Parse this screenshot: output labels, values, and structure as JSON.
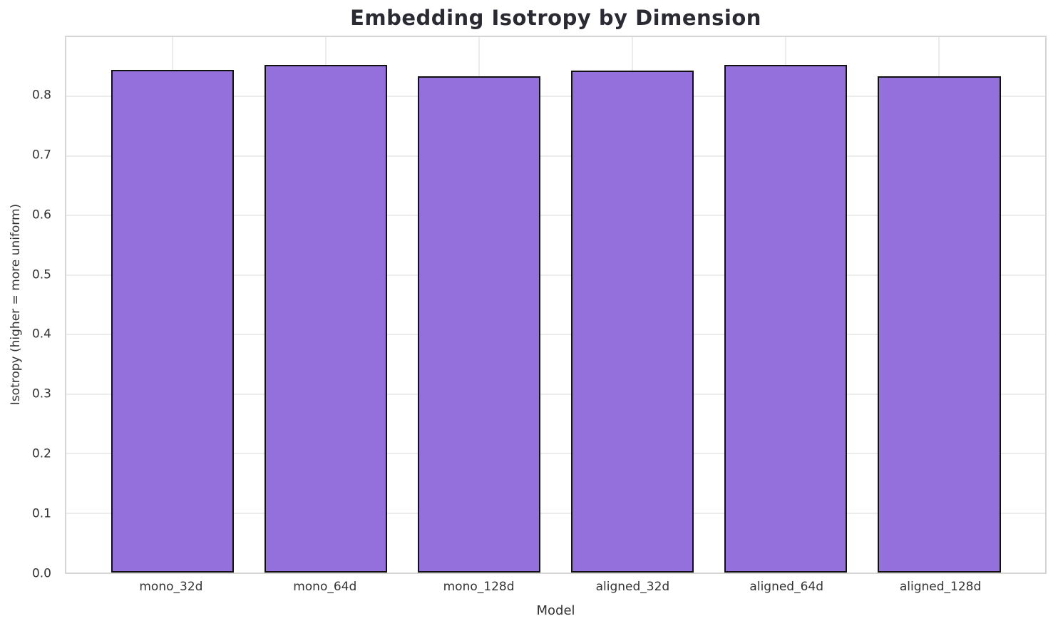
{
  "chart_data": {
    "type": "bar",
    "title": "Embedding Isotropy by Dimension",
    "xlabel": "Model",
    "ylabel": "Isotropy (higher = more uniform)",
    "categories": [
      "mono_32d",
      "mono_64d",
      "mono_128d",
      "aligned_32d",
      "aligned_64d",
      "aligned_128d"
    ],
    "values": [
      0.845,
      0.853,
      0.834,
      0.844,
      0.853,
      0.834
    ],
    "ylim": [
      0,
      0.9
    ],
    "ytick_labels": [
      "0.0",
      "0.1",
      "0.2",
      "0.3",
      "0.4",
      "0.5",
      "0.6",
      "0.7",
      "0.8"
    ],
    "grid": true,
    "legend_position": "none",
    "colors": {
      "bar_fill": "#9370DB",
      "bar_edge": "#111111",
      "grid_line": "#ececec",
      "spine": "#d5d5d5",
      "title_text": "#2a2a33",
      "tick_text": "#333333",
      "background": "#ffffff"
    }
  }
}
